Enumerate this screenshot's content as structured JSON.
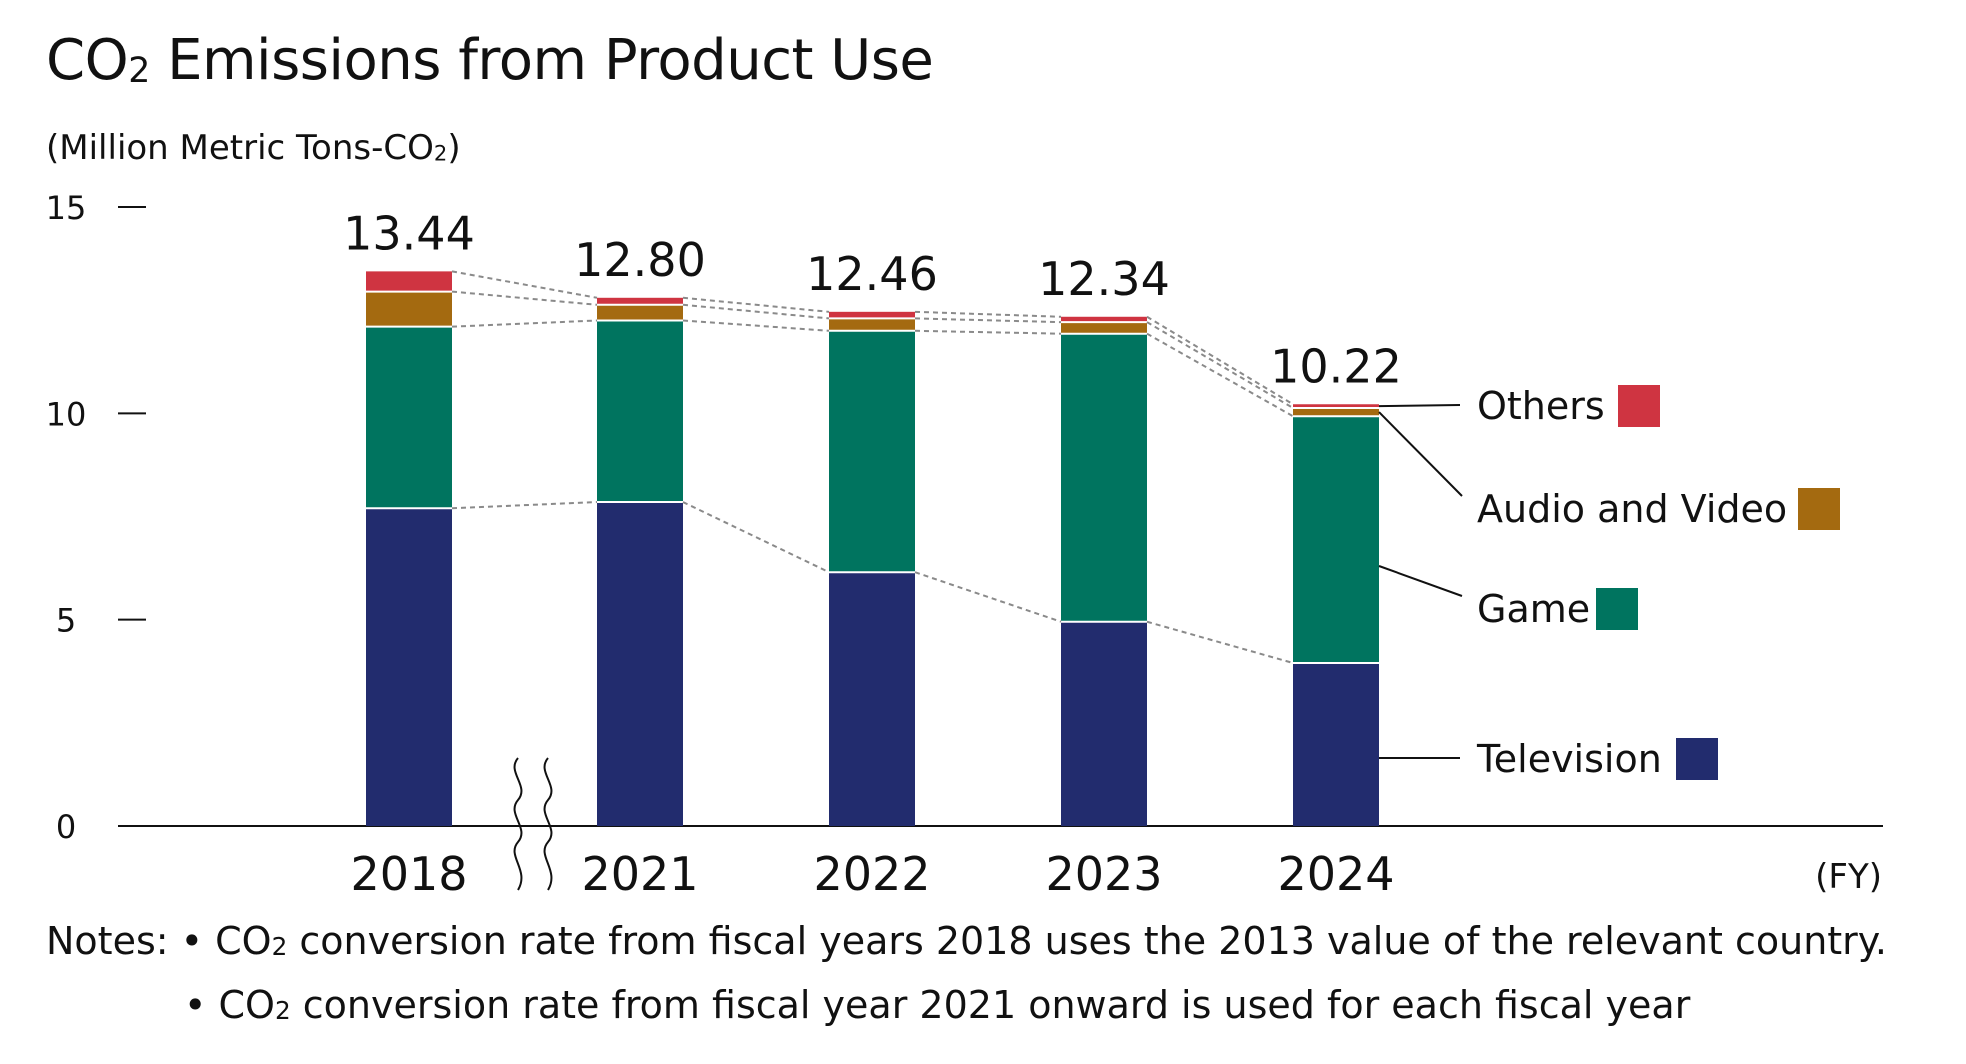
{
  "chart_data": {
    "type": "bar",
    "stacked": true,
    "title": "CO",
    "title_sub": "2",
    "title_rest": " Emissions from Product Use",
    "ylabel": "(Million Metric Tons-CO",
    "ylabel_sub": "2",
    "ylabel_close": ")",
    "xlabel": "(FY)",
    "ylim": [
      0,
      15
    ],
    "yticks": [
      "0",
      "5",
      "10",
      "15"
    ],
    "categories": [
      "2018",
      "2021",
      "2022",
      "2023",
      "2024"
    ],
    "totals": [
      "13.44",
      "12.80",
      "12.46",
      "12.34",
      "10.22"
    ],
    "axis_break_after": "2018",
    "grid": false,
    "legend_placement": "right",
    "series": [
      {
        "name": "Television",
        "color": "#222C6E",
        "values": [
          7.7,
          7.85,
          6.15,
          4.95,
          3.95
        ]
      },
      {
        "name": "Game",
        "color": "#00745F",
        "values": [
          4.4,
          4.4,
          5.85,
          6.98,
          5.98
        ]
      },
      {
        "name": "Audio and Video",
        "color": "#A46A10",
        "values": [
          0.85,
          0.38,
          0.3,
          0.28,
          0.2
        ]
      },
      {
        "name": "Others",
        "color": "#CF3441",
        "values": [
          0.49,
          0.17,
          0.16,
          0.13,
          0.09
        ]
      }
    ],
    "legend": [
      {
        "name": "Others",
        "color": "#CF3441"
      },
      {
        "name": "Audio and Video",
        "color": "#A46A10"
      },
      {
        "name": "Game",
        "color": "#00745F"
      },
      {
        "name": "Television",
        "color": "#222C6E"
      }
    ]
  },
  "notes": {
    "prefix": "Notes: ",
    "bullet": "• ",
    "line1_a": "CO",
    "line1_sub": "2",
    "line1_b": " conversion rate from fiscal years 2018 uses the 2013 value of the relevant country.",
    "line2_a": "CO",
    "line2_sub": "2",
    "line2_b": " conversion rate from fiscal year 2021 onward is used for each fiscal year"
  }
}
